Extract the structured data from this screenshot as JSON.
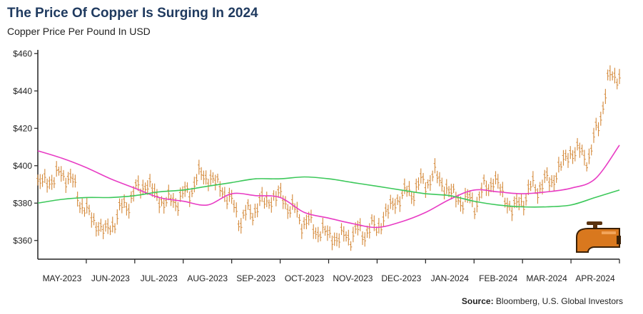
{
  "title": "The Price Of Copper Is Surging In 2024",
  "subtitle": "Copper Price Per Pound In USD",
  "source_label": "Source:",
  "source_text": "Bloomberg, U.S. Global Investors",
  "colors": {
    "price": "#d4893a",
    "ma_short": "#e83cc4",
    "ma_long": "#3cc85a",
    "axis": "#222222",
    "title": "#1f3a5f",
    "faucet": "#d9781e"
  },
  "icon": "faucet-icon",
  "chart_data": {
    "type": "line",
    "title": "The Price Of Copper Is Surging In 2024",
    "subtitle": "Copper Price Per Pound In USD",
    "xlabel": "",
    "ylabel": "",
    "ylim": [
      350,
      462
    ],
    "xlim": [
      0,
      12
    ],
    "y_ticks": [
      360,
      380,
      400,
      420,
      440,
      460
    ],
    "y_tick_labels": [
      "$360",
      "$380",
      "$400",
      "$420",
      "$440",
      "$460"
    ],
    "x_ticks": [
      1,
      2,
      3,
      4,
      5,
      6,
      7,
      8,
      9,
      10,
      11,
      12
    ],
    "x_tick_labels": [
      "MAY-2023",
      "JUN-2023",
      "JUL-2023",
      "AUG-2023",
      "SEP-2023",
      "OCT-2023",
      "NOV-2023",
      "DEC-2023",
      "JAN-2024",
      "FEB-2024",
      "MAR-2024",
      "APR-2024"
    ],
    "grid": false,
    "legend": "none",
    "series": [
      {
        "style": "high-low bars",
        "x": [
          0.0,
          0.6,
          1.0,
          1.4,
          1.8,
          2.2,
          2.6,
          3.0,
          3.4,
          3.8,
          4.2,
          4.6,
          5.0,
          5.4,
          5.8,
          6.2,
          6.6,
          7.0,
          7.4,
          7.8,
          8.2,
          8.6,
          9.0,
          9.4,
          9.8,
          10.2,
          10.6,
          11.0,
          11.4,
          11.8
        ],
        "y": [
          390,
          396,
          375,
          364,
          379,
          391,
          380,
          383,
          396,
          388,
          371,
          380,
          384,
          372,
          365,
          361,
          364,
          367,
          382,
          388,
          395,
          383,
          380,
          393,
          376,
          388,
          392,
          408,
          405,
          448
        ]
      },
      {
        "style": "line",
        "x": [
          0.0,
          0.5,
          1.0,
          1.5,
          2.0,
          2.5,
          3.0,
          3.5,
          4.0,
          4.5,
          5.0,
          5.5,
          6.0,
          6.5,
          7.0,
          7.5,
          8.0,
          8.5,
          9.0,
          9.5,
          10.0,
          10.5,
          11.0,
          11.5,
          12.0
        ],
        "y": [
          408,
          404,
          399,
          393,
          388,
          383,
          381,
          379,
          385,
          384,
          383,
          375,
          372,
          369,
          367,
          370,
          375,
          382,
          387,
          386,
          385,
          386,
          388,
          393,
          411
        ]
      },
      {
        "style": "line",
        "x": [
          0.0,
          0.5,
          1.0,
          1.5,
          2.0,
          2.5,
          3.0,
          3.5,
          4.0,
          4.5,
          5.0,
          5.5,
          6.0,
          6.5,
          7.0,
          7.5,
          8.0,
          8.5,
          9.0,
          9.5,
          10.0,
          10.5,
          11.0,
          11.5,
          12.0
        ],
        "y": [
          380,
          382,
          383,
          383,
          384,
          386,
          387,
          389,
          391,
          393,
          393,
          394,
          393,
          391,
          389,
          387,
          385,
          384,
          381,
          379,
          378,
          378,
          379,
          383,
          387
        ]
      }
    ]
  }
}
